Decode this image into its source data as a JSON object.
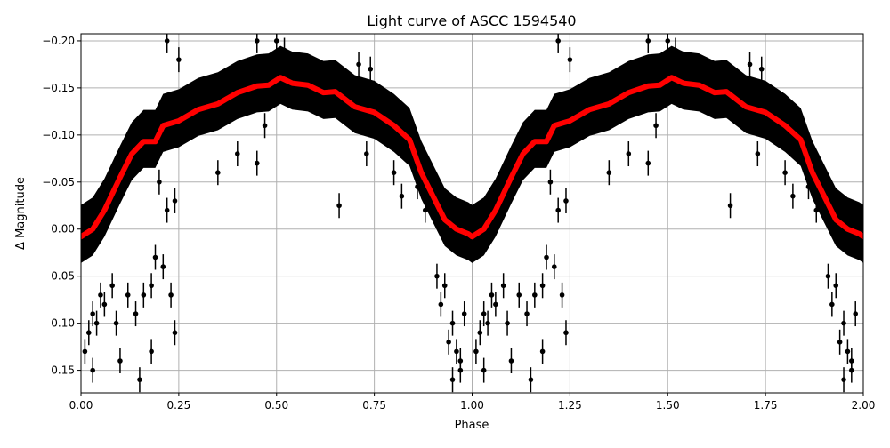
{
  "chart_data": {
    "type": "scatter",
    "title": "Light curve of ASCC 1594540",
    "xlabel": "Phase",
    "ylabel": "Δ Magnitude",
    "xlim": [
      0,
      2
    ],
    "ylim": [
      -0.2075,
      0.174
    ],
    "y_inverted": true,
    "grid": true,
    "x_ticks": [
      "0.00",
      "0.25",
      "0.50",
      "0.75",
      "1.00",
      "1.25",
      "1.50",
      "1.75",
      "2.00"
    ],
    "x_tick_values": [
      0,
      0.25,
      0.5,
      0.75,
      1,
      1.25,
      1.5,
      1.75,
      2
    ],
    "y_ticks": [
      "−0.20",
      "−0.15",
      "−0.10",
      "−0.05",
      "0.00",
      "0.05",
      "0.10",
      "0.15"
    ],
    "y_tick_values": [
      -0.2,
      -0.15,
      -0.1,
      -0.05,
      0,
      0.05,
      0.1,
      0.15
    ],
    "phase_repeat": 2,
    "colors": {
      "points": "#000000",
      "model": "#ff0000",
      "grid": "#b0b0b0"
    },
    "points_scatter": 0.028,
    "model": {
      "phase": [
        0.0,
        0.03,
        0.06,
        0.1,
        0.13,
        0.16,
        0.19,
        0.21,
        0.25,
        0.3,
        0.35,
        0.4,
        0.45,
        0.48,
        0.51,
        0.54,
        0.58,
        0.62,
        0.65,
        0.7,
        0.75,
        0.8,
        0.84,
        0.87,
        0.9,
        0.93,
        0.96,
        0.99,
        1.0
      ],
      "mag": [
        0.008,
        0.0,
        -0.02,
        -0.055,
        -0.08,
        -0.093,
        -0.093,
        -0.11,
        -0.115,
        -0.127,
        -0.133,
        -0.145,
        -0.152,
        -0.153,
        -0.161,
        -0.155,
        -0.153,
        -0.145,
        -0.146,
        -0.13,
        -0.124,
        -0.11,
        -0.095,
        -0.06,
        -0.035,
        -0.01,
        0.0,
        0.005,
        0.008
      ]
    },
    "outliers": [
      [
        0.01,
        0.13
      ],
      [
        0.02,
        0.11
      ],
      [
        0.03,
        0.09
      ],
      [
        0.04,
        0.1
      ],
      [
        0.05,
        0.07
      ],
      [
        0.06,
        0.08
      ],
      [
        0.08,
        0.06
      ],
      [
        0.09,
        0.1
      ],
      [
        0.1,
        0.14
      ],
      [
        0.12,
        0.07
      ],
      [
        0.14,
        0.09
      ],
      [
        0.16,
        0.07
      ],
      [
        0.18,
        0.06
      ],
      [
        0.19,
        0.03
      ],
      [
        0.21,
        0.04
      ],
      [
        0.23,
        0.07
      ],
      [
        0.24,
        0.11
      ],
      [
        0.18,
        0.13
      ],
      [
        0.15,
        0.16
      ],
      [
        0.03,
        0.15
      ],
      [
        0.91,
        0.05
      ],
      [
        0.92,
        0.08
      ],
      [
        0.93,
        0.06
      ],
      [
        0.94,
        0.12
      ],
      [
        0.95,
        0.1
      ],
      [
        0.95,
        0.16
      ],
      [
        0.96,
        0.13
      ],
      [
        0.97,
        0.15
      ],
      [
        0.97,
        0.14
      ],
      [
        0.98,
        0.09
      ],
      [
        0.2,
        -0.05
      ],
      [
        0.22,
        -0.02
      ],
      [
        0.24,
        -0.03
      ],
      [
        0.35,
        -0.06
      ],
      [
        0.4,
        -0.08
      ],
      [
        0.45,
        -0.07
      ],
      [
        0.47,
        -0.11
      ],
      [
        0.66,
        -0.025
      ],
      [
        0.73,
        -0.08
      ],
      [
        0.8,
        -0.06
      ],
      [
        0.82,
        -0.035
      ],
      [
        0.86,
        -0.045
      ],
      [
        0.88,
        -0.02
      ],
      [
        0.22,
        -0.2
      ],
      [
        0.25,
        -0.18
      ],
      [
        0.45,
        -0.2
      ],
      [
        0.5,
        -0.2
      ],
      [
        0.52,
        -0.19
      ],
      [
        0.71,
        -0.175
      ],
      [
        0.74,
        -0.17
      ]
    ]
  }
}
